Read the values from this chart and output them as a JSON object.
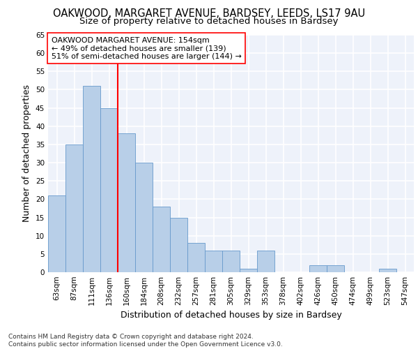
{
  "title1": "OAKWOOD, MARGARET AVENUE, BARDSEY, LEEDS, LS17 9AU",
  "title2": "Size of property relative to detached houses in Bardsey",
  "xlabel": "Distribution of detached houses by size in Bardsey",
  "ylabel": "Number of detached properties",
  "categories": [
    "63sqm",
    "87sqm",
    "111sqm",
    "136sqm",
    "160sqm",
    "184sqm",
    "208sqm",
    "232sqm",
    "257sqm",
    "281sqm",
    "305sqm",
    "329sqm",
    "353sqm",
    "378sqm",
    "402sqm",
    "426sqm",
    "450sqm",
    "474sqm",
    "499sqm",
    "523sqm",
    "547sqm"
  ],
  "values": [
    21,
    35,
    51,
    45,
    38,
    30,
    18,
    15,
    8,
    6,
    6,
    1,
    6,
    0,
    0,
    2,
    2,
    0,
    0,
    1,
    0
  ],
  "bar_color": "#b8cfe8",
  "bar_edge_color": "#6699cc",
  "vline_color": "red",
  "vline_x": 3.5,
  "annotation_text": "OAKWOOD MARGARET AVENUE: 154sqm\n← 49% of detached houses are smaller (139)\n51% of semi-detached houses are larger (144) →",
  "ylim": [
    0,
    65
  ],
  "yticks": [
    0,
    5,
    10,
    15,
    20,
    25,
    30,
    35,
    40,
    45,
    50,
    55,
    60,
    65
  ],
  "footer_text": "Contains HM Land Registry data © Crown copyright and database right 2024.\nContains public sector information licensed under the Open Government Licence v3.0.",
  "background_color": "#eef2fa",
  "grid_color": "#ffffff",
  "title1_fontsize": 10.5,
  "title2_fontsize": 9.5,
  "annotation_fontsize": 8,
  "ylabel_fontsize": 9,
  "xlabel_fontsize": 9,
  "tick_fontsize": 7.5,
  "footer_fontsize": 6.5
}
